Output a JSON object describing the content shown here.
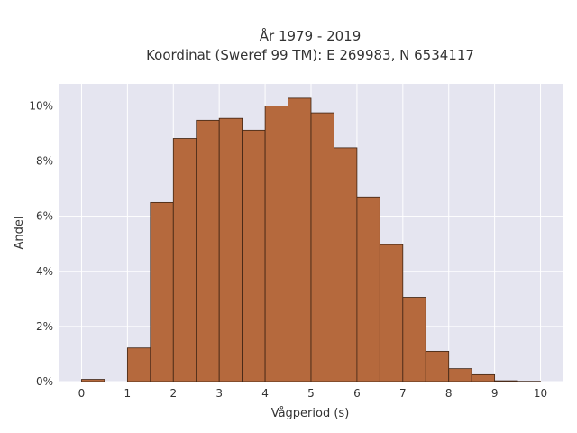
{
  "chart_data": {
    "type": "bar",
    "title": [
      "År 1979 - 2019",
      "Koordinat (Sweref 99 TM): E 269983, N 6534117"
    ],
    "xlabel": "Vågperiod (s)",
    "ylabel": "Andel",
    "xlim": [
      -0.5,
      10.5
    ],
    "ylim": [
      0,
      10.8
    ],
    "x_ticks": [
      0,
      1,
      2,
      3,
      4,
      5,
      6,
      7,
      8,
      9,
      10
    ],
    "y_ticks": [
      0,
      2,
      4,
      6,
      8,
      10
    ],
    "y_tick_suffix": "%",
    "grid": true,
    "bin_width": 0.5,
    "bins": [
      {
        "start": 0.0,
        "end": 0.5,
        "value": 0.08
      },
      {
        "start": 0.5,
        "end": 1.0,
        "value": 0.0
      },
      {
        "start": 1.0,
        "end": 1.5,
        "value": 1.22
      },
      {
        "start": 1.5,
        "end": 2.0,
        "value": 6.5
      },
      {
        "start": 2.0,
        "end": 2.5,
        "value": 8.82
      },
      {
        "start": 2.5,
        "end": 3.0,
        "value": 9.48
      },
      {
        "start": 3.0,
        "end": 3.5,
        "value": 9.55
      },
      {
        "start": 3.5,
        "end": 4.0,
        "value": 9.12
      },
      {
        "start": 4.0,
        "end": 4.5,
        "value": 10.0
      },
      {
        "start": 4.5,
        "end": 5.0,
        "value": 10.28
      },
      {
        "start": 5.0,
        "end": 5.5,
        "value": 9.75
      },
      {
        "start": 5.5,
        "end": 6.0,
        "value": 8.48
      },
      {
        "start": 6.0,
        "end": 6.5,
        "value": 6.7
      },
      {
        "start": 6.5,
        "end": 7.0,
        "value": 4.97
      },
      {
        "start": 7.0,
        "end": 7.5,
        "value": 3.06
      },
      {
        "start": 7.5,
        "end": 8.0,
        "value": 1.1
      },
      {
        "start": 8.0,
        "end": 8.5,
        "value": 0.47
      },
      {
        "start": 8.5,
        "end": 9.0,
        "value": 0.25
      },
      {
        "start": 9.0,
        "end": 9.5,
        "value": 0.03
      },
      {
        "start": 9.5,
        "end": 10.0,
        "value": 0.01
      }
    ],
    "colors": {
      "bar_fill": "#b5693d",
      "bar_stroke": "#3d2313",
      "plot_bg": "#e5e5f0",
      "grid": "#ffffff",
      "text": "#333333"
    }
  }
}
